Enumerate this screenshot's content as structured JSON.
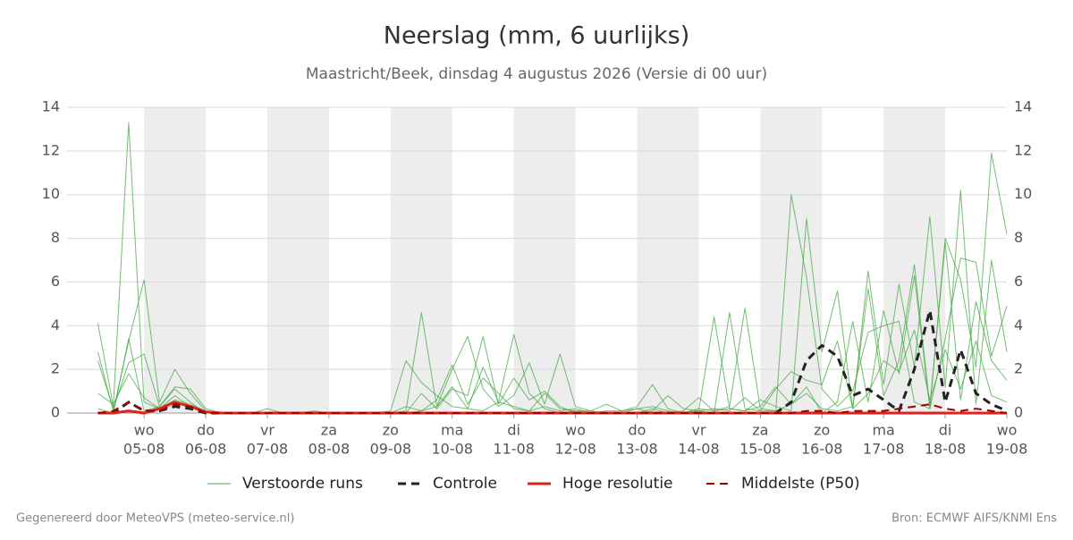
{
  "chart_data": {
    "type": "line",
    "title": "Neerslag (mm, 6 uurlijks)",
    "subtitle": "Maastricht/Beek, dinsdag  4 augustus 2026 (Versie di 00 uur)",
    "footer_left": "Gegenereerd door MeteoVPS (meteo-service.nl)",
    "footer_right": "Bron: ECMWF AIFS/KNMI Ens",
    "x": [
      6,
      12,
      18,
      24,
      30,
      36,
      42,
      48,
      54,
      60,
      66,
      72,
      78,
      84,
      90,
      96,
      102,
      108,
      114,
      120,
      126,
      132,
      138,
      144,
      150,
      156,
      162,
      168,
      174,
      180,
      186,
      192,
      198,
      204,
      210,
      216,
      222,
      228,
      234,
      240,
      246,
      252,
      258,
      264,
      270,
      276,
      282,
      288,
      294,
      300,
      306,
      312,
      318,
      324,
      330,
      336,
      342,
      348,
      354,
      360
    ],
    "xlim": [
      -6,
      360
    ],
    "xticks": [
      {
        "value": 24,
        "label": "05-08"
      },
      {
        "value": 48,
        "label": "06-08"
      },
      {
        "value": 72,
        "label": "07-08"
      },
      {
        "value": 96,
        "label": "08-08"
      },
      {
        "value": 120,
        "label": "09-08"
      },
      {
        "value": 144,
        "label": "10-08"
      },
      {
        "value": 168,
        "label": "11-08"
      },
      {
        "value": 192,
        "label": "12-08"
      },
      {
        "value": 216,
        "label": "13-08"
      },
      {
        "value": 240,
        "label": "14-08"
      },
      {
        "value": 264,
        "label": "15-08"
      },
      {
        "value": 288,
        "label": "16-08"
      },
      {
        "value": 312,
        "label": "17-08"
      },
      {
        "value": 336,
        "label": "18-08"
      },
      {
        "value": 360,
        "label": "19-08"
      }
    ],
    "xtick_weekdays": [
      "wo",
      "do",
      "vr",
      "za",
      "zo",
      "ma",
      "di",
      "wo",
      "do",
      "vr",
      "za",
      "zo",
      "ma",
      "di",
      "wo"
    ],
    "ylim": [
      0,
      14
    ],
    "yticks": [
      0,
      2,
      4,
      6,
      8,
      10,
      12,
      14
    ],
    "y2lim": [
      0,
      14
    ],
    "y2ticks": [
      0,
      2,
      4,
      6,
      8,
      10,
      12,
      14
    ],
    "grid": true,
    "series": [
      {
        "name": "Verstoorde runs",
        "color": "#43a843",
        "width": 1,
        "runs": [
          [
            4.1,
            0.3,
            13.3,
            0.5,
            0.2,
            0.8,
            0.3,
            0,
            0,
            0,
            0,
            0,
            0,
            0,
            0,
            0,
            0,
            0,
            0,
            0.1,
            2.4,
            1.4,
            0.8,
            0.3,
            0.2,
            0.1,
            0.5,
            3.6,
            0.9,
            0.2,
            0,
            0.1,
            0,
            0,
            0,
            0.2,
            0.3,
            0.1,
            0,
            0.2,
            0.1,
            0.3,
            4.8,
            0.2,
            0.1,
            10.0,
            6.2,
            1.1,
            0.3,
            1.0,
            3.7,
            4.0,
            4.2,
            0.5,
            0.2,
            8.0,
            6.1,
            2.1,
            11.9,
            8.2
          ],
          [
            2.8,
            0.1,
            3.3,
            6.1,
            0.5,
            2.0,
            0.9,
            0.1,
            0,
            0,
            0,
            0,
            0,
            0,
            0,
            0,
            0,
            0,
            0,
            0,
            0.1,
            4.6,
            0.3,
            2.0,
            3.5,
            1.1,
            0.3,
            0.8,
            2.3,
            0.4,
            2.7,
            0.3,
            0.1,
            0.4,
            0.1,
            0.2,
            0,
            0,
            0,
            0.1,
            4.4,
            0.2,
            0.1,
            0.6,
            0.3,
            0.1,
            8.9,
            2.8,
            5.6,
            0.2,
            6.5,
            1.3,
            5.9,
            2.1,
            9.0,
            1.2,
            10.2,
            0.4,
            7.0,
            2.8
          ],
          [
            2.4,
            0.2,
            2.3,
            2.7,
            0.3,
            1.2,
            1.1,
            0.2,
            0,
            0,
            0,
            0.2,
            0,
            0,
            0.1,
            0,
            0,
            0,
            0,
            0,
            0,
            0.9,
            0.2,
            1.1,
            0.8,
            3.5,
            0.4,
            1.6,
            0.6,
            1.0,
            0.3,
            0,
            0,
            0.1,
            0.1,
            0.3,
            1.3,
            0.2,
            0,
            0.1,
            0.2,
            0.1,
            0.7,
            0.1,
            0.1,
            0.4,
            1.2,
            0,
            0.5,
            4.2,
            0.5,
            4.7,
            1.8,
            6.3,
            0.2,
            3.4,
            7.1,
            6.9,
            2.6,
            4.9
          ],
          [
            0.9,
            0.4,
            1.8,
            0.7,
            0.2,
            0.6,
            0.4,
            0.1,
            0,
            0,
            0,
            0,
            0,
            0,
            0,
            0,
            0,
            0,
            0,
            0,
            0.3,
            0.1,
            0.6,
            2.2,
            0.4,
            1.6,
            0.9,
            0.2,
            0.1,
            0.3,
            0.1,
            0.2,
            0,
            0,
            0,
            0,
            0.1,
            0.8,
            0.2,
            0.1,
            0,
            4.6,
            0.2,
            0.1,
            1.1,
            1.9,
            1.5,
            1.3,
            3.3,
            0.2,
            0.9,
            2.4,
            1.9,
            3.8,
            0.6,
            2.9,
            1.1,
            3.3,
            0.8,
            0.5
          ],
          [
            0.2,
            0,
            3.4,
            0.1,
            0.3,
            1.1,
            0.5,
            0,
            0,
            0,
            0,
            0,
            0,
            0,
            0,
            0,
            0,
            0,
            0,
            0,
            0,
            0.1,
            0.3,
            1.2,
            0.2,
            2.1,
            0.5,
            0.3,
            0.1,
            0.9,
            0.2,
            0.1,
            0.1,
            0,
            0,
            0,
            0.2,
            0,
            0.1,
            0.7,
            0.1,
            0.2,
            0.1,
            0.3,
            1.2,
            0.4,
            0.9,
            0.2,
            0.1,
            0.3,
            5.7,
            0.8,
            2.4,
            6.8,
            0.3,
            7.8,
            0.6,
            5.1,
            2.4,
            1.5
          ]
        ]
      },
      {
        "name": "Controle",
        "color": "#222222",
        "width": 3,
        "dashed": true,
        "values": [
          0,
          0,
          0.5,
          0.1,
          0.1,
          0.3,
          0.2,
          0,
          0,
          0,
          0,
          0,
          0,
          0,
          0,
          0,
          0,
          0,
          0,
          0,
          0,
          0,
          0,
          0,
          0,
          0,
          0,
          0,
          0,
          0,
          0,
          0,
          0,
          0,
          0,
          0,
          0,
          0,
          0,
          0,
          0,
          0,
          0,
          0,
          0,
          0.5,
          2.4,
          3.1,
          2.6,
          0.8,
          1.1,
          0.6,
          0.1,
          2.0,
          4.7,
          0.5,
          2.9,
          0.9,
          0.4,
          0.1
        ]
      },
      {
        "name": "Hoge resolutie",
        "color": "#e0201b",
        "width": 3,
        "dashed": false,
        "values": [
          0,
          0,
          0.1,
          0,
          0.2,
          0.5,
          0.3,
          0.05,
          0,
          0,
          0,
          0,
          0,
          0,
          0,
          0,
          0,
          0,
          0,
          0,
          0,
          0,
          0,
          0,
          0,
          0,
          0,
          0,
          0,
          0,
          0,
          0,
          0,
          0,
          0,
          0,
          0,
          0,
          0,
          0,
          0,
          0,
          0,
          0,
          0,
          0,
          0,
          0,
          0,
          0,
          0,
          0,
          0,
          0,
          0,
          0,
          0,
          0,
          0,
          0
        ]
      },
      {
        "name": "Middelste (P50)",
        "color": "#a00000",
        "width": 2,
        "dashed": true,
        "values": [
          0,
          0.1,
          0.5,
          0.1,
          0.1,
          0.4,
          0.3,
          0,
          0,
          0,
          0,
          0,
          0,
          0,
          0,
          0,
          0,
          0,
          0,
          0,
          0,
          0,
          0,
          0,
          0,
          0,
          0,
          0,
          0,
          0,
          0,
          0,
          0,
          0,
          0,
          0,
          0,
          0,
          0,
          0,
          0,
          0,
          0,
          0,
          0,
          0,
          0.1,
          0.1,
          0,
          0.1,
          0.1,
          0.1,
          0.2,
          0.3,
          0.4,
          0.2,
          0.1,
          0.2,
          0.1,
          0
        ]
      }
    ]
  }
}
